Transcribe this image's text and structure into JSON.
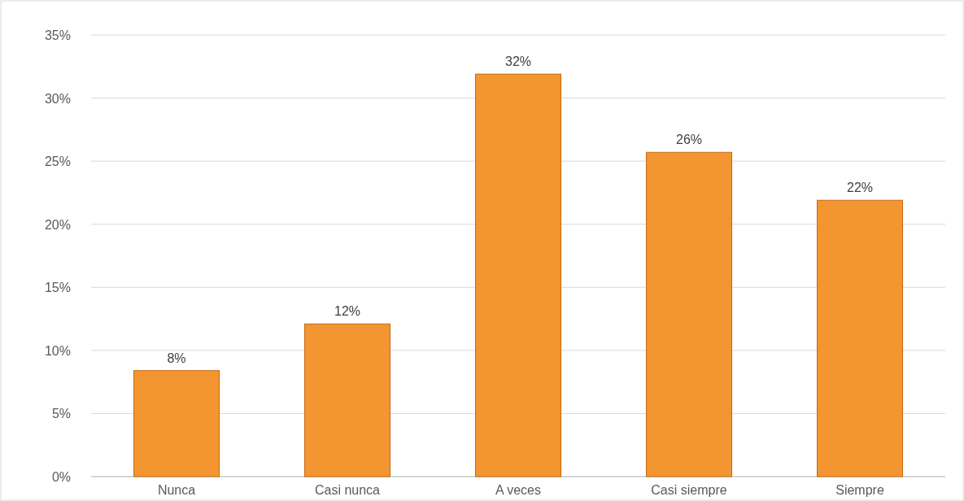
{
  "chart_data": {
    "type": "bar",
    "categories": [
      "Nunca",
      "Casi nunca",
      "A veces",
      "Casi siempre",
      "Siempre"
    ],
    "values": [
      8.4,
      12.1,
      31.9,
      25.7,
      21.9
    ],
    "value_labels": [
      "8%",
      "12%",
      "32%",
      "26%",
      "22%"
    ],
    "color": "#f39530",
    "ylim": [
      0,
      35
    ],
    "yticks": [
      {
        "value": 0,
        "label": "0%"
      },
      {
        "value": 5,
        "label": "5%"
      },
      {
        "value": 10,
        "label": "10%"
      },
      {
        "value": 15,
        "label": "15%"
      },
      {
        "value": 20,
        "label": "20%"
      },
      {
        "value": 25,
        "label": "25%"
      },
      {
        "value": 30,
        "label": "30%"
      },
      {
        "value": 35,
        "label": "35%"
      }
    ],
    "grid": "y"
  }
}
